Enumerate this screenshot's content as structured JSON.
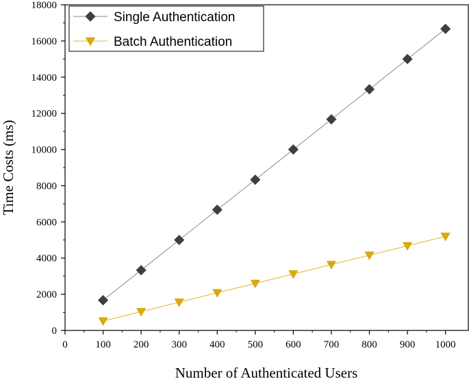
{
  "chart_data": {
    "type": "line",
    "xlabel": "Number of Authenticated Users",
    "ylabel": "Time Costs (ms)",
    "xlim": [
      0,
      1060
    ],
    "ylim": [
      0,
      18000
    ],
    "x_ticks": [
      0,
      100,
      200,
      300,
      400,
      500,
      600,
      700,
      800,
      900,
      1000
    ],
    "y_ticks": [
      0,
      2000,
      4000,
      6000,
      8000,
      10000,
      12000,
      14000,
      16000,
      18000
    ],
    "grid": false,
    "legend_position": "top-left",
    "x": [
      100,
      200,
      300,
      400,
      500,
      600,
      700,
      800,
      900,
      1000
    ],
    "series": [
      {
        "name": "Single Authentication",
        "marker": "diamond",
        "color": "#3f3f3f",
        "line_color": "#8a8a8a",
        "values": [
          1670,
          3330,
          5000,
          6670,
          8330,
          10000,
          11670,
          13330,
          15000,
          16670
        ]
      },
      {
        "name": "Batch Authentication",
        "marker": "triangle-down",
        "color": "#d9a90e",
        "line_color": "#e0b531",
        "values": [
          520,
          1040,
          1560,
          2080,
          2600,
          3120,
          3640,
          4160,
          4680,
          5200
        ]
      }
    ]
  }
}
